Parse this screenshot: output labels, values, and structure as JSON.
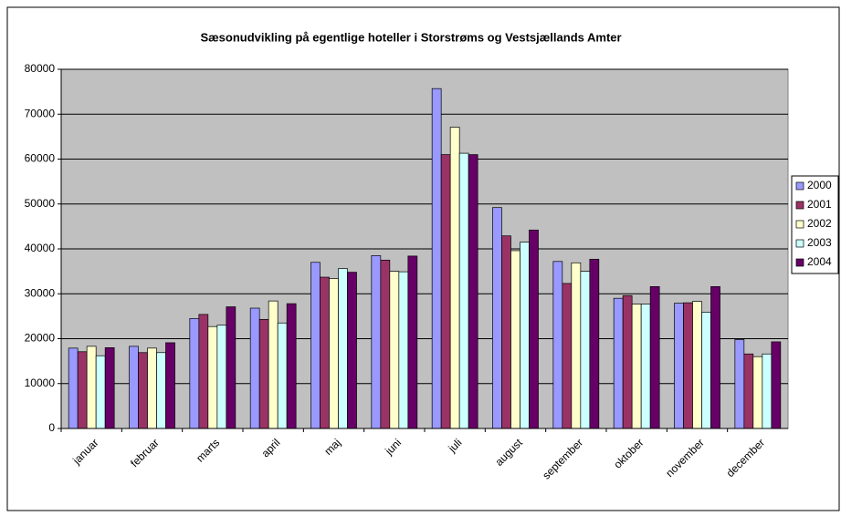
{
  "chart_data": {
    "type": "bar",
    "title": "Sæsonudvikling på egentlige hoteller i Storstrøms og Vestsjællands Amter",
    "categories": [
      "januar",
      "februar",
      "marts",
      "april",
      "maj",
      "juni",
      "juli",
      "august",
      "september",
      "oktober",
      "november",
      "december"
    ],
    "series": [
      {
        "name": "2000",
        "color": "#9999ff",
        "values": [
          17900,
          18300,
          24500,
          26800,
          37000,
          38500,
          75700,
          49200,
          37200,
          29000,
          27900,
          19800
        ]
      },
      {
        "name": "2001",
        "color": "#993366",
        "values": [
          17100,
          16900,
          25400,
          24300,
          33700,
          37500,
          61000,
          42900,
          32300,
          29600,
          28000,
          16600
        ]
      },
      {
        "name": "2002",
        "color": "#ffffcc",
        "values": [
          18300,
          17900,
          22700,
          28400,
          33400,
          35000,
          67100,
          39600,
          36900,
          27700,
          28300,
          16000
        ]
      },
      {
        "name": "2003",
        "color": "#ccffff",
        "values": [
          16200,
          16900,
          23000,
          23500,
          35600,
          34900,
          61300,
          41500,
          35000,
          27700,
          25900,
          16600
        ]
      },
      {
        "name": "2004",
        "color": "#660066",
        "values": [
          18000,
          19100,
          27100,
          27800,
          34800,
          38400,
          61000,
          44200,
          37700,
          31600,
          31600,
          19300
        ]
      }
    ],
    "ylim": [
      0,
      80000
    ],
    "yticks": [
      0,
      10000,
      20000,
      30000,
      40000,
      50000,
      60000,
      70000,
      80000
    ],
    "grid": true,
    "legend": "right"
  }
}
